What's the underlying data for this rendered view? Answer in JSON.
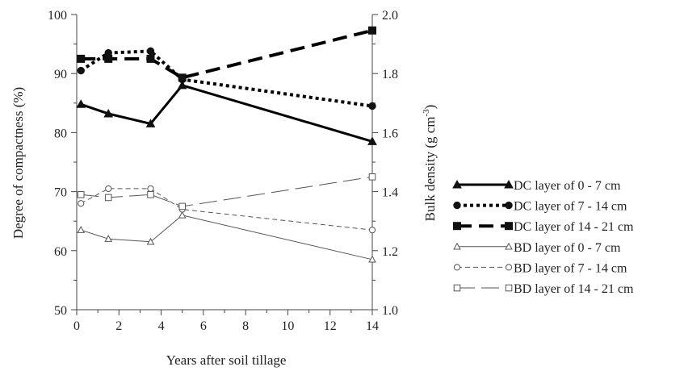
{
  "chart_data": {
    "type": "line",
    "xlabel": "Years after soil tillage",
    "ylabel_left": "Degree of compactness (%)",
    "ylabel_right_main": "Bulk density (g cm",
    "ylabel_right_sup": "-3",
    "ylabel_right_close": ")",
    "xlim": [
      0,
      14
    ],
    "ylim_left": [
      50,
      100
    ],
    "ylim_right": [
      1.0,
      2.0
    ],
    "x_ticks": [
      "0",
      "2",
      "4",
      "6",
      "8",
      "10",
      "12",
      "14"
    ],
    "y_left_ticks": [
      "50",
      "60",
      "70",
      "80",
      "90",
      "100"
    ],
    "y_right_ticks": [
      "1.0",
      "1.2",
      "1.4",
      "1.6",
      "1.8",
      "2.0"
    ],
    "grid": false,
    "legend_position": "right",
    "series": [
      {
        "name": "DC layer of 0 - 7 cm",
        "axis": "left",
        "marker": "triangle-filled",
        "line": "solid-thick",
        "x": [
          0.2,
          1.5,
          3.5,
          5,
          14
        ],
        "values": [
          84.8,
          83.2,
          81.5,
          88.0,
          78.5
        ]
      },
      {
        "name": "DC layer of 7 - 14 cm",
        "axis": "left",
        "marker": "circle-filled",
        "line": "dotted-thick",
        "x": [
          0.2,
          1.5,
          3.5,
          5,
          14
        ],
        "values": [
          90.5,
          93.5,
          93.8,
          89.0,
          84.5
        ]
      },
      {
        "name": "DC layer of 14 - 21 cm",
        "axis": "left",
        "marker": "square-filled",
        "line": "dashed-thick",
        "x": [
          0.2,
          1.5,
          3.5,
          5,
          14
        ],
        "values": [
          92.5,
          92.5,
          92.5,
          89.3,
          97.3
        ]
      },
      {
        "name": "BD layer of 0 - 7 cm",
        "axis": "right",
        "marker": "triangle-open",
        "line": "solid-thin",
        "x": [
          0.2,
          1.5,
          3.5,
          5,
          14
        ],
        "values": [
          1.27,
          1.24,
          1.23,
          1.32,
          1.17
        ]
      },
      {
        "name": "BD layer of 7 - 14 cm",
        "axis": "right",
        "marker": "circle-open",
        "line": "dashed-thin",
        "x": [
          0.2,
          1.5,
          3.5,
          5,
          14
        ],
        "values": [
          1.36,
          1.41,
          1.41,
          1.34,
          1.27
        ]
      },
      {
        "name": "BD layer of 14 - 21 cm",
        "axis": "right",
        "marker": "square-open",
        "line": "longdash-thin",
        "x": [
          0.2,
          1.5,
          3.5,
          5,
          14
        ],
        "values": [
          1.39,
          1.38,
          1.39,
          1.35,
          1.45
        ]
      }
    ]
  }
}
